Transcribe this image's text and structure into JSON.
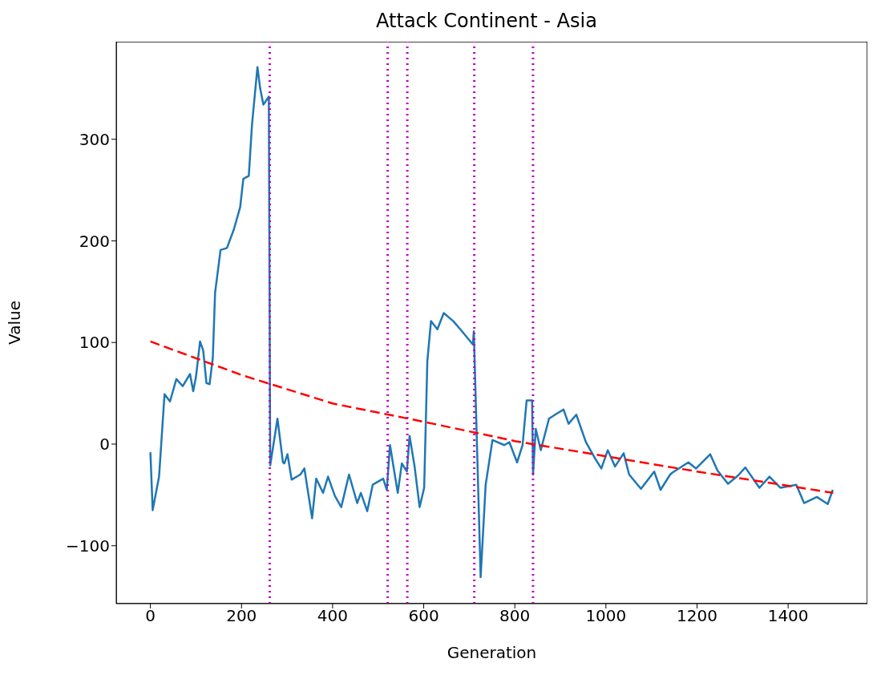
{
  "chart_data": {
    "type": "line",
    "title": "Attack Continent - Asia",
    "xlabel": "Generation",
    "ylabel": "Value",
    "xlim": [
      -75,
      1574
    ],
    "ylim": [
      -157,
      396
    ],
    "xticks": [
      0,
      200,
      400,
      600,
      800,
      1000,
      1200,
      1400
    ],
    "yticks": [
      {
        "value": -100,
        "label": "−100"
      },
      0,
      100,
      200,
      300
    ],
    "ref_lines": [
      {
        "axis": "x",
        "value": 262,
        "color": "#bf00bf",
        "line_style": "dotted"
      },
      {
        "axis": "x",
        "value": 521,
        "color": "#bf00bf",
        "line_style": "dotted"
      },
      {
        "axis": "x",
        "value": 564,
        "color": "#bf00bf",
        "line_style": "dotted"
      },
      {
        "axis": "x",
        "value": 711,
        "color": "#bf00bf",
        "line_style": "dotted"
      },
      {
        "axis": "x",
        "value": 840,
        "color": "#bf00bf",
        "line_style": "dotted"
      }
    ],
    "series": [
      {
        "color": "#1f77b4",
        "line_style": "solid",
        "x": [
          0,
          5,
          19,
          31,
          43,
          57,
          71,
          87,
          94,
          100,
          109,
          116,
          123,
          130,
          137,
          142,
          154,
          168,
          183,
          197,
          204,
          216,
          223,
          235,
          241,
          248,
          260,
          263,
          279,
          291,
          294,
          301,
          310,
          329,
          338,
          355,
          364,
          379,
          390,
          405,
          419,
          436,
          454,
          462,
          476,
          488,
          511,
          519,
          526,
          543,
          552,
          563,
          569,
          580,
          591,
          601,
          608,
          616,
          630,
          644,
          665,
          684,
          708,
          710,
          725,
          736,
          751,
          777,
          788,
          805,
          817,
          826,
          838,
          840,
          846,
          857,
          875,
          892,
          907,
          918,
          935,
          956,
          976,
          990,
          1004,
          1020,
          1039,
          1051,
          1077,
          1106,
          1120,
          1141,
          1146,
          1181,
          1198,
          1229,
          1245,
          1268,
          1290,
          1306,
          1337,
          1359,
          1383,
          1418,
          1435,
          1463,
          1487,
          1498
        ],
        "values": [
          -8,
          -65,
          -32,
          49,
          42,
          64,
          57,
          69,
          52,
          66,
          101,
          92,
          60,
          59,
          85,
          149,
          191,
          193,
          211,
          233,
          261,
          264,
          314,
          371,
          350,
          334,
          342,
          -21,
          25,
          -18,
          -19,
          -10,
          -35,
          -30,
          -24,
          -73,
          -34,
          -48,
          -32,
          -51,
          -62,
          -30,
          -58,
          -48,
          -66,
          -40,
          -34,
          -45,
          -1,
          -48,
          -19,
          -27,
          8,
          -22,
          -62,
          -43,
          82,
          121,
          113,
          129,
          121,
          111,
          98,
          111,
          -131,
          -40,
          4,
          -1,
          2,
          -18,
          -1,
          43,
          43,
          -30,
          15,
          -6,
          25,
          30,
          34,
          20,
          29,
          2,
          -14,
          -24,
          -6,
          -22,
          -9,
          -30,
          -44,
          -27,
          -45,
          -30,
          -28,
          -18,
          -24,
          -10,
          -26,
          -39,
          -31,
          -23,
          -43,
          -32,
          -43,
          -40,
          -58,
          -52,
          -59,
          -45
        ]
      },
      {
        "type": "line",
        "color": "#ff0000",
        "line_style": "dashed",
        "x": [
          0,
          200,
          400,
          600,
          800,
          1000,
          1200,
          1400,
          1499
        ],
        "values": [
          101,
          68,
          40,
          22,
          3,
          -12,
          -27,
          -41,
          -48
        ]
      }
    ]
  }
}
